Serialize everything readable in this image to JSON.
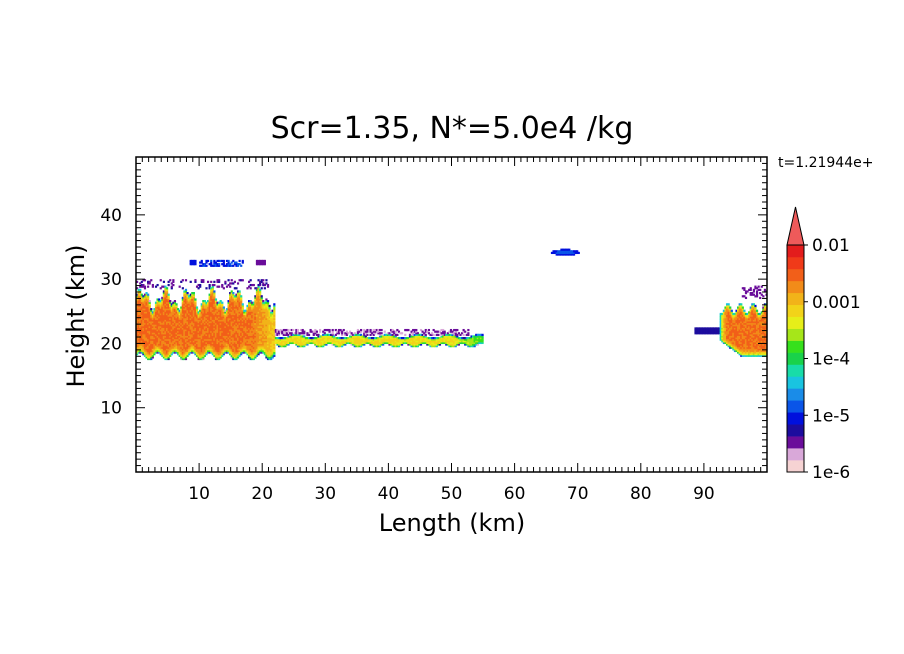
{
  "chart_data": {
    "type": "heatmap",
    "title": "Scr=1.35, N*=5.0e4 /kg",
    "time_label": "t=1.21944e+",
    "xlabel": "Length  (km)",
    "ylabel": "Height  (km)",
    "xlim": [
      0,
      100
    ],
    "ylim": [
      0,
      49
    ],
    "x_ticks": [
      10,
      20,
      30,
      40,
      50,
      60,
      70,
      80,
      90
    ],
    "x_tick_labels": [
      "10",
      "20",
      "30",
      "40",
      "50",
      "60",
      "70",
      "80",
      "90"
    ],
    "y_ticks": [
      10,
      20,
      30,
      40
    ],
    "y_tick_labels": [
      "10",
      "20",
      "30",
      "40"
    ],
    "colorbar": {
      "scale": "log",
      "range": [
        1e-06,
        0.01
      ],
      "extend": "max",
      "tick_values": [
        1e-06,
        1e-05,
        0.0001,
        0.001,
        0.01
      ],
      "tick_labels": [
        "1e-6",
        "1e-5",
        "1e-4",
        "0.001",
        "0.01"
      ],
      "colors": [
        "#f6d3d3",
        "#d9a8d9",
        "#6a0d9a",
        "#1c0c9e",
        "#0010dd",
        "#0a55e8",
        "#1a8ce8",
        "#19c4e0",
        "#18dca8",
        "#19d24a",
        "#36e01c",
        "#a6e619",
        "#e6ee19",
        "#f2d319",
        "#f2b319",
        "#f28b19",
        "#f25f19",
        "#f03a19",
        "#e31c1c"
      ],
      "top_triangle_color": "#ee5a5a"
    },
    "regions": [
      {
        "name": "left-cloud",
        "x": [
          0,
          22
        ],
        "y": [
          17,
          29
        ],
        "peak": "~2e-3 (yellow)"
      },
      {
        "name": "left-sparse-upper",
        "x": [
          0,
          21
        ],
        "y": [
          29,
          33
        ],
        "peak": "~1e-5 (blue)"
      },
      {
        "name": "thin-layer",
        "x": [
          21,
          55
        ],
        "y": [
          20,
          22.5
        ],
        "peak": "~5e-4 (green/yellow)"
      },
      {
        "name": "isolated-blob",
        "x": [
          66,
          70
        ],
        "y": [
          33.8,
          34.6
        ],
        "peak": "~1e-5 (blue)"
      },
      {
        "name": "right-cloud",
        "x": [
          89,
          100
        ],
        "y": [
          17.5,
          28
        ],
        "peak": "~2e-3 (yellow)"
      }
    ]
  }
}
